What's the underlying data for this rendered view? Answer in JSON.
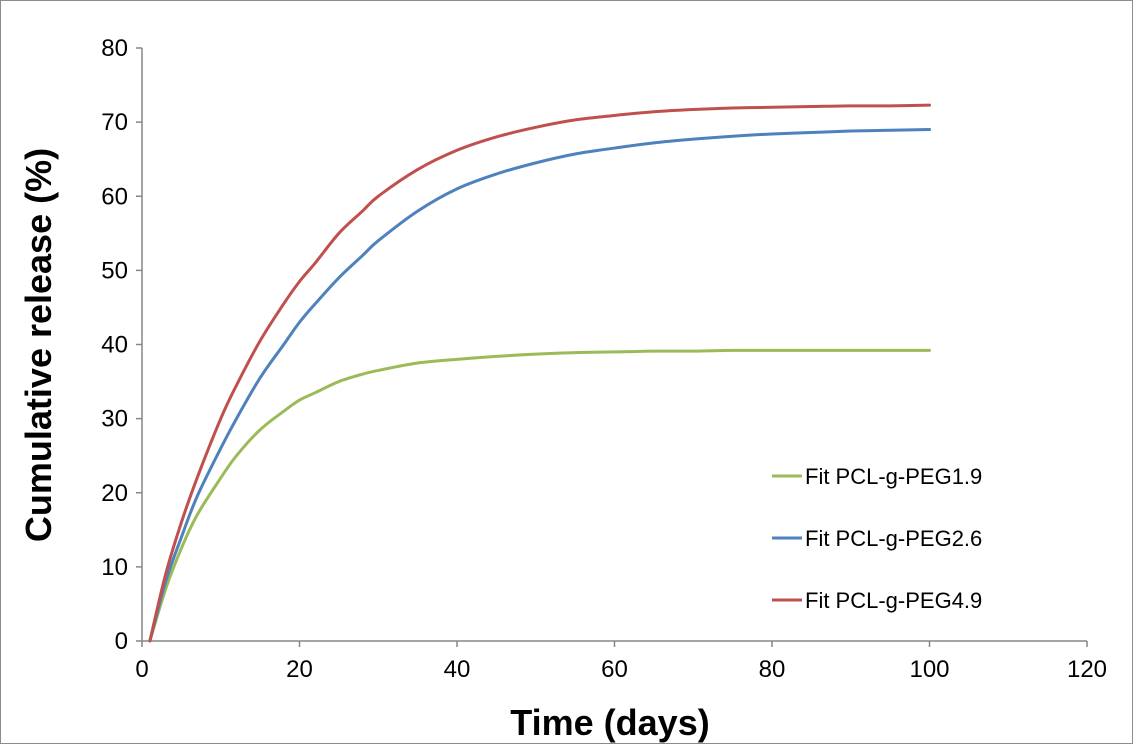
{
  "chart_data": {
    "type": "line",
    "title": "",
    "xlabel": "Time (days)",
    "ylabel": "Cumulative release (%)",
    "xlim": [
      0,
      120
    ],
    "ylim": [
      0,
      80
    ],
    "x_ticks": [
      0,
      20,
      40,
      60,
      80,
      100,
      120
    ],
    "y_ticks": [
      0,
      10,
      20,
      30,
      40,
      50,
      60,
      70,
      80
    ],
    "grid": false,
    "legend_position": "right",
    "x": [
      1,
      3,
      5,
      7,
      10,
      12,
      15,
      18,
      20,
      22,
      25,
      28,
      30,
      35,
      40,
      45,
      50,
      55,
      60,
      65,
      70,
      75,
      80,
      85,
      90,
      95,
      100
    ],
    "series": [
      {
        "name": "Fit PCL-g-PEG1.9",
        "color": "#9bbb59",
        "values": [
          0,
          7,
          12.5,
          17,
          22,
          25,
          28.5,
          31,
          32.5,
          33.5,
          35,
          36,
          36.5,
          37.5,
          38,
          38.4,
          38.7,
          38.9,
          39,
          39.1,
          39.1,
          39.2,
          39.2,
          39.2,
          39.2,
          39.2,
          39.2
        ]
      },
      {
        "name": "Fit PCL-g-PEG2.6",
        "color": "#4f81bd",
        "values": [
          0,
          8,
          14,
          19.5,
          26,
          30,
          35.5,
          40,
          43,
          45.5,
          49,
          52,
          54,
          58,
          61,
          63,
          64.5,
          65.7,
          66.5,
          67.2,
          67.7,
          68.1,
          68.4,
          68.6,
          68.8,
          68.9,
          69
        ]
      },
      {
        "name": "Fit PCL-g-PEG4.9",
        "color": "#c0504d",
        "values": [
          0,
          9,
          16,
          22,
          30,
          34.5,
          40.5,
          45.5,
          48.5,
          51,
          55,
          58,
          60,
          63.6,
          66.2,
          68,
          69.3,
          70.3,
          70.9,
          71.4,
          71.7,
          71.9,
          72,
          72.1,
          72.2,
          72.2,
          72.3
        ]
      }
    ]
  }
}
